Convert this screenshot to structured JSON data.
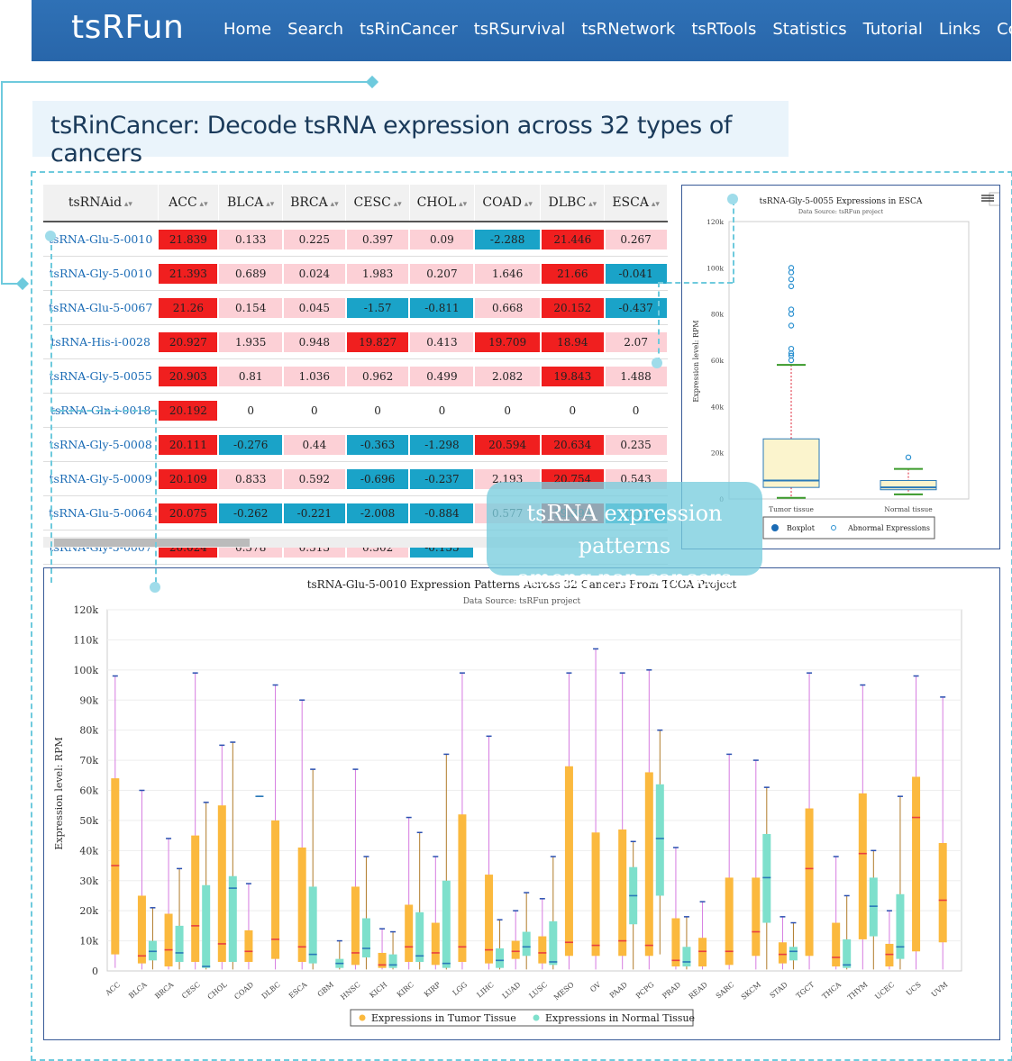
{
  "nav": {
    "logo": "tsRFun",
    "items": [
      "Home",
      "Search",
      "tsRinCancer",
      "tsRSurvival",
      "tsRNetwork",
      "tsRTools",
      "Statistics",
      "Tutorial",
      "Links",
      "Contact"
    ]
  },
  "heading": "tsRinCancer: Decode tsRNA expression across 32 types of cancers",
  "table": {
    "columns": [
      "tsRNAid",
      "ACC",
      "BLCA",
      "BRCA",
      "CESC",
      "CHOL",
      "COAD",
      "DLBC",
      "ESCA"
    ],
    "rows": [
      [
        "tsRNA-Glu-5-0010",
        "21.839",
        "0.133",
        "0.225",
        "0.397",
        "0.09",
        "-2.288",
        "21.446",
        "0.267"
      ],
      [
        "tsRNA-Gly-5-0010",
        "21.393",
        "0.689",
        "0.024",
        "1.983",
        "0.207",
        "1.646",
        "21.66",
        "-0.041"
      ],
      [
        "tsRNA-Glu-5-0067",
        "21.26",
        "0.154",
        "0.045",
        "-1.57",
        "-0.811",
        "0.668",
        "20.152",
        "-0.437"
      ],
      [
        "tsRNA-His-i-0028",
        "20.927",
        "1.935",
        "0.948",
        "19.827",
        "0.413",
        "19.709",
        "18.94",
        "2.07"
      ],
      [
        "tsRNA-Gly-5-0055",
        "20.903",
        "0.81",
        "1.036",
        "0.962",
        "0.499",
        "2.082",
        "19.843",
        "1.488"
      ],
      [
        "tsRNA-Gln-i-0018",
        "20.192",
        "0",
        "0",
        "0",
        "0",
        "0",
        "0",
        "0"
      ],
      [
        "tsRNA-Gly-5-0008",
        "20.111",
        "-0.276",
        "0.44",
        "-0.363",
        "-1.298",
        "20.594",
        "20.634",
        "0.235"
      ],
      [
        "tsRNA-Gly-5-0009",
        "20.109",
        "0.833",
        "0.592",
        "-0.696",
        "-0.237",
        "2.193",
        "20.754",
        "0.543"
      ],
      [
        "tsRNA-Glu-5-0064",
        "20.075",
        "-0.262",
        "-0.221",
        "-2.008",
        "-0.884",
        "0.577",
        "19.895",
        "-0.33"
      ],
      [
        "tsRNA-Gly-5-0007",
        "20.024",
        "0.578",
        "0.513",
        "0.502",
        "-0.155",
        "",
        "",
        ""
      ]
    ]
  },
  "colors": {
    "high": "#f01f1f",
    "pos": "#fcd0d6",
    "neg": "#1aa3c8",
    "zero": "#ffffff",
    "tumor": "#fbb93e",
    "normal": "#7ee0cc",
    "median_tumor": "#e84040",
    "median_normal": "#2a7ab8"
  },
  "overlay": {
    "line1": "tsRNA expression patterns",
    "line2": "among pan-cancers"
  },
  "esca_chart": {
    "title": "tsRNA-Gly-5-0055 Expressions in ESCA",
    "subtitle": "Data Source: tsRFun project",
    "ylabel": "Expression level: RPM",
    "ticks": [
      "0",
      "20k",
      "40k",
      "60k",
      "80k",
      "100k",
      "120k"
    ],
    "legend": [
      "Boxplot",
      "Abnormal Expressions"
    ]
  },
  "chart_data": [
    {
      "type": "boxplot",
      "title": "tsRNA-Gly-5-0055 Expressions in ESCA",
      "subtitle": "Data Source: tsRFun project",
      "ylabel": "Expression level: RPM",
      "ylim": [
        0,
        120000
      ],
      "categories": [
        "Tumor tissue",
        "Normal tissue"
      ],
      "boxes": [
        {
          "name": "Tumor tissue",
          "min": 500,
          "q1": 5000,
          "median": 8000,
          "q3": 26000,
          "max": 58000,
          "outliers": [
            60000,
            62000,
            63000,
            65000,
            75000,
            80000,
            82000,
            92000,
            95000,
            98000,
            100000
          ]
        },
        {
          "name": "Normal tissue",
          "min": 2000,
          "q1": 4000,
          "median": 5000,
          "q3": 8000,
          "max": 13000,
          "outliers": [
            18000
          ]
        }
      ]
    },
    {
      "type": "boxplot",
      "title": "tsRNA-Glu-5-0010 Expression Patterns Across 32 Cancers From TCGA Project",
      "subtitle": "Data Source: tsRFun project",
      "ylabel": "Expression level: RPM",
      "ylim": [
        0,
        120000
      ],
      "yticks": [
        "0",
        "10k",
        "20k",
        "30k",
        "40k",
        "50k",
        "60k",
        "70k",
        "80k",
        "90k",
        "100k",
        "110k",
        "120k"
      ],
      "legend": [
        "Expressions in Tumor Tissue",
        "Expressions in Normal Tissue"
      ],
      "categories": [
        "ACC",
        "BLCA",
        "BRCA",
        "CESC",
        "CHOL",
        "COAD",
        "DLBC",
        "ESCA",
        "GBM",
        "HNSC",
        "KICH",
        "KIRC",
        "KIRP",
        "LGG",
        "LIHC",
        "LUAD",
        "LUSC",
        "MESO",
        "OV",
        "PAAD",
        "PCPG",
        "PRAD",
        "READ",
        "SARC",
        "SKCM",
        "STAD",
        "TGCT",
        "THCA",
        "THYM",
        "UCEC",
        "UCS",
        "UVM"
      ],
      "series": [
        {
          "name": "Expressions in Tumor Tissue",
          "boxes": [
            [
              1000,
              5500,
              35000,
              64000,
              98000
            ],
            [
              500,
              2500,
              5000,
              25000,
              60000
            ],
            [
              500,
              1500,
              7000,
              19000,
              44000
            ],
            [
              500,
              3000,
              15000,
              45000,
              99000
            ],
            [
              500,
              3000,
              9000,
              55000,
              75000
            ],
            [
              500,
              3000,
              6500,
              13500,
              29000
            ],
            [
              500,
              4000,
              10500,
              50000,
              95000
            ],
            [
              500,
              3000,
              8000,
              41000,
              90000
            ],
            [
              0,
              0,
              0,
              0,
              0
            ],
            [
              500,
              2000,
              6000,
              28000,
              67000
            ],
            [
              500,
              1000,
              2000,
              6000,
              14000
            ],
            [
              500,
              3000,
              8000,
              22000,
              51000
            ],
            [
              500,
              2000,
              6000,
              16000,
              38000
            ],
            [
              500,
              3000,
              8000,
              52000,
              99000
            ],
            [
              500,
              2500,
              7000,
              32000,
              78000
            ],
            [
              500,
              4000,
              6500,
              10000,
              20000
            ],
            [
              500,
              2500,
              6000,
              11500,
              24000
            ],
            [
              500,
              5000,
              9500,
              68000,
              99000
            ],
            [
              500,
              5000,
              8500,
              46000,
              107000
            ],
            [
              500,
              5000,
              10000,
              47000,
              99000
            ],
            [
              500,
              5000,
              8500,
              66000,
              100000
            ],
            [
              500,
              1500,
              3500,
              17500,
              41000
            ],
            [
              500,
              1500,
              6500,
              11000,
              23000
            ],
            [
              500,
              2000,
              6500,
              31000,
              72000
            ],
            [
              500,
              5000,
              13000,
              31000,
              70000
            ],
            [
              500,
              2500,
              5500,
              9500,
              18000
            ],
            [
              500,
              5000,
              34000,
              54000,
              99000
            ],
            [
              500,
              1500,
              4500,
              16000,
              38000
            ],
            [
              500,
              10500,
              39000,
              59000,
              95000
            ],
            [
              500,
              1500,
              5500,
              9000,
              20000
            ],
            [
              500,
              6500,
              51000,
              64500,
              98000
            ],
            [
              500,
              9500,
              23500,
              42500,
              91000
            ]
          ]
        },
        {
          "name": "Expressions in Normal Tissue",
          "boxes": [
            [
              0,
              0,
              0,
              0,
              0
            ],
            [
              500,
              3500,
              6500,
              10000,
              21000
            ],
            [
              500,
              3000,
              6000,
              15000,
              34000
            ],
            [
              500,
              1000,
              1500,
              28500,
              56000
            ],
            [
              500,
              3000,
              27500,
              31500,
              76000
            ],
            [
              58000,
              58000,
              58000,
              58000,
              58000
            ],
            [
              0,
              0,
              0,
              0,
              0
            ],
            [
              500,
              2500,
              5500,
              28000,
              67000
            ],
            [
              500,
              1000,
              2500,
              4000,
              10000
            ],
            [
              500,
              4500,
              7500,
              17500,
              38000
            ],
            [
              500,
              1000,
              2000,
              5500,
              13000
            ],
            [
              500,
              3000,
              5000,
              19500,
              46000
            ],
            [
              500,
              1000,
              2500,
              30000,
              72000
            ],
            [
              0,
              0,
              0,
              0,
              0
            ],
            [
              500,
              1000,
              3500,
              7500,
              17000
            ],
            [
              500,
              5000,
              8000,
              13000,
              26000
            ],
            [
              500,
              2000,
              3000,
              16500,
              38000
            ],
            [
              0,
              0,
              0,
              0,
              0
            ],
            [
              0,
              0,
              0,
              0,
              0
            ],
            [
              500,
              15500,
              25000,
              34500,
              43000
            ],
            [
              5500,
              25000,
              44000,
              62000,
              80000
            ],
            [
              500,
              1500,
              3000,
              8000,
              18000
            ],
            [
              0,
              0,
              0,
              0,
              0
            ],
            [
              0,
              0,
              0,
              0,
              0
            ],
            [
              500,
              16000,
              31000,
              45500,
              61000
            ],
            [
              500,
              3500,
              6500,
              8000,
              16000
            ],
            [
              0,
              0,
              0,
              0,
              0
            ],
            [
              500,
              1000,
              2000,
              10500,
              25000
            ],
            [
              500,
              11500,
              21500,
              31000,
              40000
            ],
            [
              500,
              4000,
              8000,
              25500,
              58000
            ],
            [
              0,
              0,
              0,
              0,
              0
            ],
            [
              0,
              0,
              0,
              0,
              0
            ]
          ]
        }
      ]
    }
  ]
}
